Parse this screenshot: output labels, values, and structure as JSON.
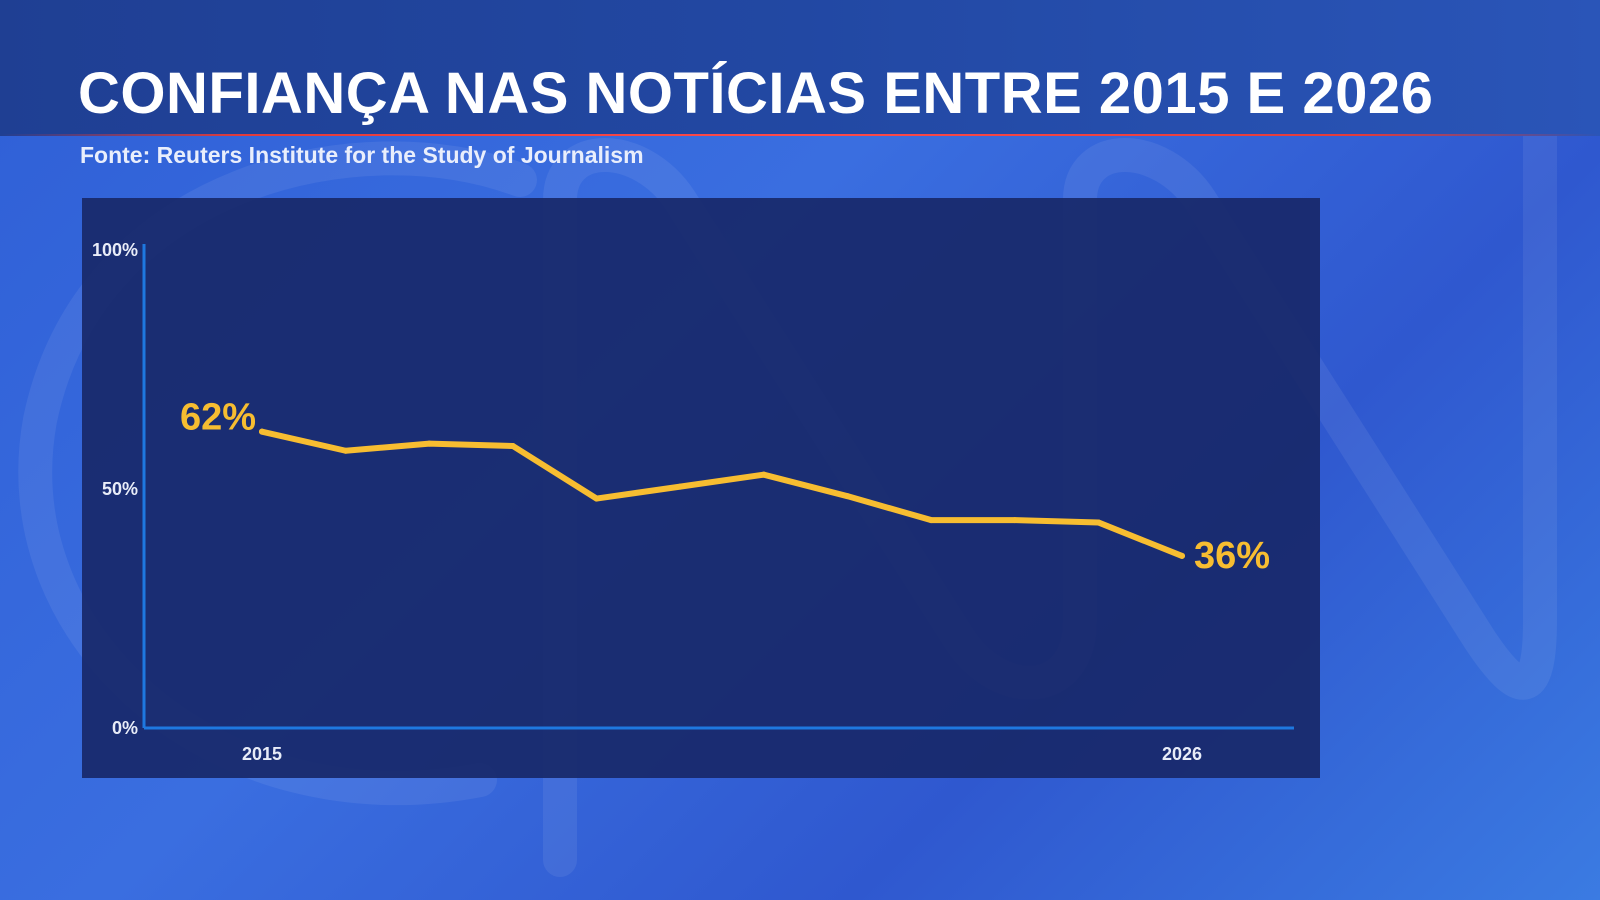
{
  "title": "CONFIANÇA NAS NOTÍCIAS ENTRE 2015 E 2026",
  "subtitle": "Fonte: Reuters Institute for the Study of Journalism",
  "colors": {
    "line": "#f7bd31",
    "axis": "#1e78e0",
    "panel": "#182869"
  },
  "chart_data": {
    "type": "line",
    "title": "CONFIANÇA NAS NOTÍCIAS ENTRE 2015 E 2026",
    "xlabel": "",
    "ylabel": "",
    "ylim": [
      0,
      100
    ],
    "y_ticks": [
      "0%",
      "50%",
      "100%"
    ],
    "x_ticks": [
      "2015",
      "2026"
    ],
    "grid": false,
    "x": [
      2015,
      2016,
      2017,
      2018,
      2019,
      2020,
      2021,
      2022,
      2023,
      2024,
      2025,
      2026
    ],
    "series": [
      {
        "values": [
          62,
          58,
          59.5,
          59,
          48,
          50.5,
          53,
          48.5,
          43.5,
          43.5,
          43,
          36
        ]
      }
    ],
    "data_labels": [
      {
        "x": 2015,
        "text": "62%"
      },
      {
        "x": 2026,
        "text": "36%"
      }
    ]
  }
}
